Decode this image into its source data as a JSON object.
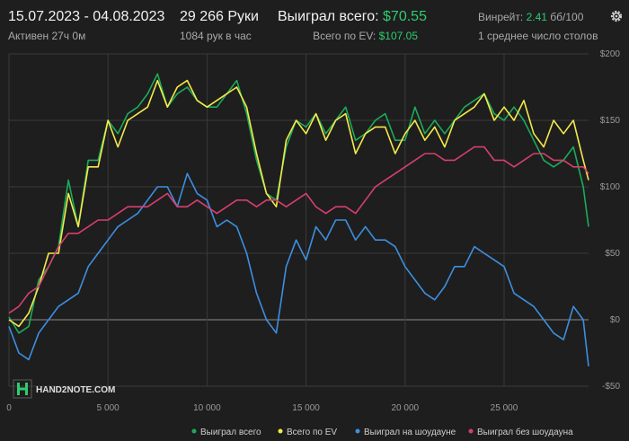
{
  "header": {
    "date_range": "15.07.2023 - 04.08.2023",
    "active": "Активен 27ч 0м",
    "hands": "29 266 Руки",
    "hands_per_hour": "1084 рук в час",
    "won_label": "Выиграл всего:",
    "won_value": "$70.55",
    "ev_label": "Всего по EV:",
    "ev_value": "$107.05",
    "winrate_label": "Винрейт:",
    "winrate_value": "2.41",
    "winrate_unit": "бб/100",
    "tables": "1 среднее число столов",
    "settings_icon": "gear-icon"
  },
  "logo": {
    "text": "HAND2NOTE.COM"
  },
  "colors": {
    "background": "#1e1e1e",
    "grid": "#3a3a3a",
    "zero_line": "#8a8a8a",
    "accent_green": "#2ecc71"
  },
  "chart_data": {
    "type": "line",
    "xlabel": "",
    "ylabel": "",
    "xlim": [
      0,
      29266
    ],
    "ylim": [
      -50,
      200
    ],
    "x_ticks": [
      0,
      5000,
      10000,
      15000,
      20000,
      25000
    ],
    "x_tick_labels": [
      "0",
      "5 000",
      "10 000",
      "15 000",
      "20 000",
      "25 000"
    ],
    "y_ticks": [
      200,
      150,
      100,
      50,
      0,
      -50
    ],
    "y_tick_labels": [
      "$200",
      "$150",
      "$100",
      "$50",
      "$0",
      "-$50"
    ],
    "grid": true,
    "legend_position": "bottom-right",
    "series": [
      {
        "name": "Выиграл всего",
        "color": "#1bab5a",
        "x": [
          0,
          500,
          1000,
          1500,
          2000,
          2500,
          3000,
          3500,
          4000,
          4500,
          5000,
          5500,
          6000,
          6500,
          7000,
          7500,
          8000,
          8500,
          9000,
          9500,
          10000,
          10500,
          11000,
          11500,
          12000,
          12500,
          13000,
          13500,
          14000,
          14500,
          15000,
          15500,
          16000,
          16500,
          17000,
          17500,
          18000,
          18500,
          19000,
          19500,
          20000,
          20500,
          21000,
          21500,
          22000,
          22500,
          23000,
          23500,
          24000,
          24500,
          25000,
          25500,
          26000,
          26500,
          27000,
          27500,
          28000,
          28500,
          29000,
          29266
        ],
        "values": [
          2,
          -10,
          -5,
          30,
          40,
          55,
          105,
          70,
          120,
          120,
          150,
          140,
          155,
          160,
          170,
          185,
          160,
          170,
          175,
          165,
          160,
          160,
          170,
          180,
          155,
          120,
          95,
          90,
          130,
          150,
          145,
          155,
          140,
          150,
          160,
          135,
          140,
          150,
          155,
          135,
          135,
          160,
          140,
          150,
          140,
          150,
          160,
          165,
          170,
          155,
          150,
          160,
          150,
          135,
          120,
          115,
          120,
          130,
          100,
          70
        ]
      },
      {
        "name": "Всего по EV",
        "color": "#f5e94a",
        "x": [
          0,
          500,
          1000,
          1500,
          2000,
          2500,
          3000,
          3500,
          4000,
          4500,
          5000,
          5500,
          6000,
          6500,
          7000,
          7500,
          8000,
          8500,
          9000,
          9500,
          10000,
          10500,
          11000,
          11500,
          12000,
          12500,
          13000,
          13500,
          14000,
          14500,
          15000,
          15500,
          16000,
          16500,
          17000,
          17500,
          18000,
          18500,
          19000,
          19500,
          20000,
          20500,
          21000,
          21500,
          22000,
          22500,
          23000,
          23500,
          24000,
          24500,
          25000,
          25500,
          26000,
          26500,
          27000,
          27500,
          28000,
          28500,
          29000,
          29266
        ],
        "values": [
          0,
          -5,
          5,
          25,
          50,
          50,
          95,
          70,
          115,
          115,
          150,
          130,
          150,
          155,
          160,
          180,
          160,
          175,
          180,
          165,
          160,
          165,
          170,
          175,
          160,
          125,
          95,
          85,
          135,
          150,
          140,
          155,
          135,
          150,
          155,
          125,
          140,
          145,
          145,
          125,
          140,
          150,
          135,
          145,
          130,
          150,
          155,
          160,
          170,
          150,
          160,
          150,
          165,
          140,
          130,
          150,
          140,
          150,
          120,
          105
        ]
      },
      {
        "name": "Выиграл на шоудауне",
        "color": "#3d8fe0",
        "x": [
          0,
          500,
          1000,
          1500,
          2000,
          2500,
          3000,
          3500,
          4000,
          4500,
          5000,
          5500,
          6000,
          6500,
          7000,
          7500,
          8000,
          8500,
          9000,
          9500,
          10000,
          10500,
          11000,
          11500,
          12000,
          12500,
          13000,
          13500,
          14000,
          14500,
          15000,
          15500,
          16000,
          16500,
          17000,
          17500,
          18000,
          18500,
          19000,
          19500,
          20000,
          20500,
          21000,
          21500,
          22000,
          22500,
          23000,
          23500,
          24000,
          24500,
          25000,
          25500,
          26000,
          26500,
          27000,
          27500,
          28000,
          28500,
          29000,
          29266
        ],
        "values": [
          -5,
          -25,
          -30,
          -10,
          0,
          10,
          15,
          20,
          40,
          50,
          60,
          70,
          75,
          80,
          90,
          100,
          100,
          85,
          110,
          95,
          90,
          70,
          75,
          70,
          50,
          20,
          0,
          -10,
          40,
          60,
          45,
          70,
          60,
          75,
          75,
          60,
          70,
          60,
          60,
          55,
          40,
          30,
          20,
          15,
          25,
          40,
          40,
          55,
          50,
          45,
          40,
          20,
          15,
          10,
          0,
          -10,
          -15,
          10,
          0,
          -35
        ]
      },
      {
        "name": "Выиграл без шоудауна",
        "color": "#d63f6e",
        "x": [
          0,
          500,
          1000,
          1500,
          2000,
          2500,
          3000,
          3500,
          4000,
          4500,
          5000,
          5500,
          6000,
          6500,
          7000,
          7500,
          8000,
          8500,
          9000,
          9500,
          10000,
          10500,
          11000,
          11500,
          12000,
          12500,
          13000,
          13500,
          14000,
          14500,
          15000,
          15500,
          16000,
          16500,
          17000,
          17500,
          18000,
          18500,
          19000,
          19500,
          20000,
          20500,
          21000,
          21500,
          22000,
          22500,
          23000,
          23500,
          24000,
          24500,
          25000,
          25500,
          26000,
          26500,
          27000,
          27500,
          28000,
          28500,
          29000,
          29266
        ],
        "values": [
          5,
          10,
          20,
          25,
          40,
          55,
          65,
          65,
          70,
          75,
          75,
          80,
          85,
          85,
          85,
          90,
          95,
          85,
          85,
          90,
          85,
          80,
          85,
          90,
          90,
          85,
          90,
          90,
          85,
          90,
          95,
          85,
          80,
          85,
          85,
          80,
          90,
          100,
          105,
          110,
          115,
          120,
          125,
          125,
          120,
          120,
          125,
          130,
          130,
          120,
          120,
          115,
          120,
          125,
          125,
          120,
          120,
          115,
          115,
          110
        ]
      }
    ]
  }
}
